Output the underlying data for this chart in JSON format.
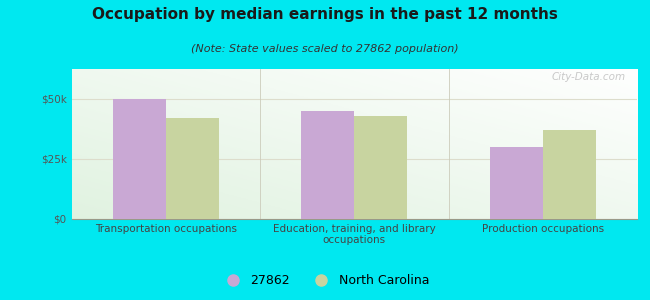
{
  "title": "Occupation by median earnings in the past 12 months",
  "subtitle": "(Note: State values scaled to 27862 population)",
  "categories": [
    "Transportation occupations",
    "Education, training, and library\noccupations",
    "Production occupations"
  ],
  "series_27862": [
    50000,
    45000,
    30000
  ],
  "series_nc": [
    42000,
    43000,
    37000
  ],
  "bar_color_27862": "#c9a8d4",
  "bar_color_nc": "#c8d4a0",
  "legend_labels": [
    "27862",
    "North Carolina"
  ],
  "ylim": [
    0,
    62500
  ],
  "yticks": [
    0,
    25000,
    50000
  ],
  "ytick_labels": [
    "$0",
    "$25k",
    "$50k"
  ],
  "background_color": "#00e8f0",
  "title_fontsize": 11,
  "subtitle_fontsize": 8,
  "axis_label_fontsize": 7.5,
  "bar_width": 0.28,
  "watermark": "City-Data.com"
}
